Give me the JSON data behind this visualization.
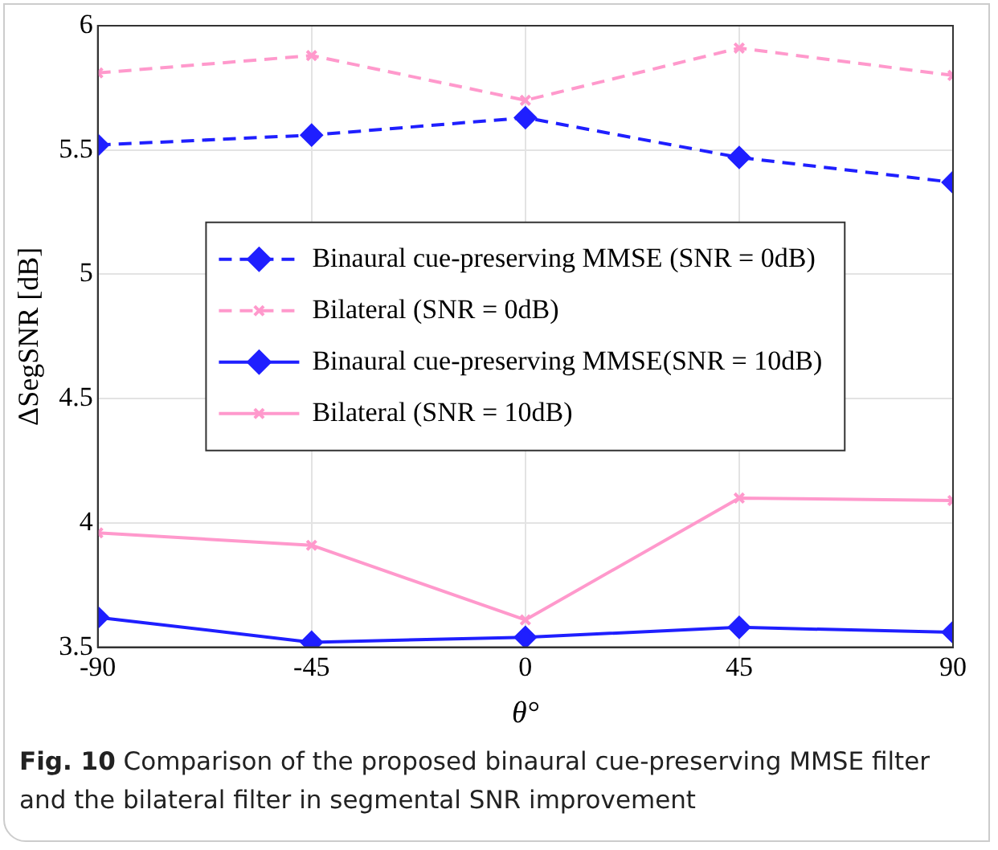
{
  "chart_data": {
    "type": "line",
    "xlabel": "θ°",
    "ylabel": "ΔSegSNR [dB]",
    "x": [
      -90,
      -45,
      0,
      45,
      90
    ],
    "xlim": [
      -90,
      90
    ],
    "xticks": [
      -90,
      -45,
      0,
      45,
      90
    ],
    "ylim": [
      3.5,
      6
    ],
    "yticks": [
      3.5,
      4,
      4.5,
      5,
      5.5,
      6
    ],
    "grid": true,
    "legend": "center",
    "series": [
      {
        "name": "Binaural cue-preserving MMSE (SNR = 0dB)",
        "color": "#1f1fff",
        "marker": "diamond",
        "line_style": "dashed",
        "values": [
          5.52,
          5.56,
          5.63,
          5.47,
          5.37
        ]
      },
      {
        "name": "Bilateral (SNR = 0dB)",
        "color": "#ff99cc",
        "marker": "cross",
        "line_style": "dashed",
        "values": [
          5.81,
          5.88,
          5.7,
          5.91,
          5.8
        ]
      },
      {
        "name": "Binaural cue-preserving MMSE(SNR = 10dB)",
        "color": "#1f1fff",
        "marker": "diamond",
        "line_style": "solid",
        "values": [
          3.62,
          3.52,
          3.54,
          3.58,
          3.56
        ]
      },
      {
        "name": "Bilateral (SNR = 10dB)",
        "color": "#ff99cc",
        "marker": "cross",
        "line_style": "solid",
        "values": [
          3.96,
          3.91,
          3.61,
          4.1,
          4.09
        ]
      }
    ],
    "annotations": [
      "Fig. 10",
      "Comparison of the proposed binaural cue-preserving MMSE filter and the bilateral filter in segmental SNR improvement"
    ]
  }
}
